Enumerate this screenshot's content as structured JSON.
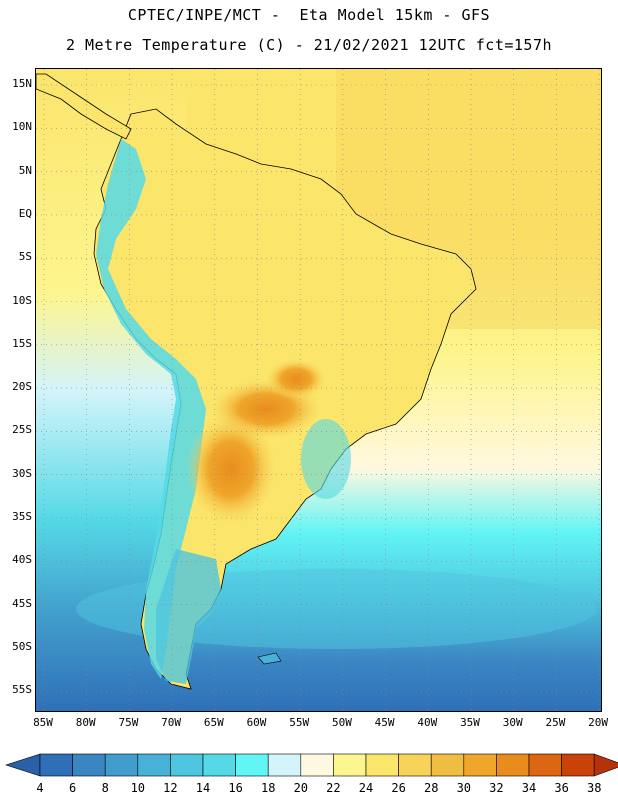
{
  "header": {
    "line1": "CPTEC/INPE/MCT -  Eta Model 15km - GFS",
    "line2": "2 Metre Temperature (C) - 21/02/2021 12UTC fct=157h"
  },
  "map": {
    "lat_labels": [
      "15N",
      "10N",
      "5N",
      "EQ",
      "5S",
      "10S",
      "15S",
      "20S",
      "25S",
      "30S",
      "35S",
      "40S",
      "45S",
      "50S",
      "55S"
    ],
    "lon_labels": [
      "85W",
      "80W",
      "75W",
      "70W",
      "65W",
      "60W",
      "55W",
      "50W",
      "45W",
      "40W",
      "35W",
      "30W",
      "25W",
      "20W"
    ]
  },
  "colorbar": {
    "values": [
      "4",
      "6",
      "8",
      "10",
      "12",
      "14",
      "16",
      "18",
      "20",
      "22",
      "24",
      "26",
      "28",
      "30",
      "32",
      "34",
      "36",
      "38"
    ],
    "colors": [
      "#2f6fb8",
      "#3a86c3",
      "#419dcc",
      "#47b2d6",
      "#4fc6df",
      "#55d9e6",
      "#62f5f5",
      "#d2f4fa",
      "#fff8e0",
      "#fdf58f",
      "#fbe56b",
      "#f8d35a",
      "#efbd42",
      "#efa62a",
      "#e88c1e",
      "#dd6613",
      "#c8420a"
    ],
    "low_end_color": "#2b5fa8",
    "high_end_color": "#b5330a"
  }
}
